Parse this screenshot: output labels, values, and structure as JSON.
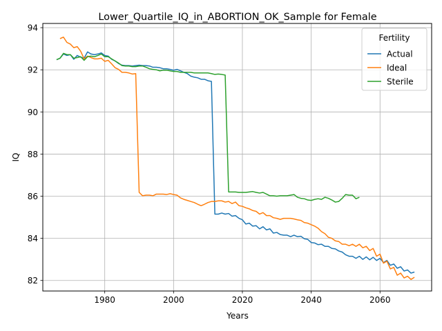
{
  "chart_data": {
    "type": "line",
    "title": "Lower_Quartile_IQ_in_ABORTION_OK_Sample for Female",
    "xlabel": "Years",
    "ylabel": "IQ",
    "xlim": [
      1962,
      2075
    ],
    "ylim": [
      81.5,
      94.2
    ],
    "xticks": [
      1980,
      2000,
      2020,
      2040,
      2060
    ],
    "yticks": [
      82,
      84,
      86,
      88,
      90,
      92,
      94
    ],
    "grid": true,
    "legend": {
      "title": "Fertility",
      "placement": "top-right"
    },
    "series": [
      {
        "name": "Actual",
        "color": "#1f77b4",
        "points": [
          [
            1966,
            92.48
          ],
          [
            1967,
            92.55
          ],
          [
            1968,
            92.75
          ],
          [
            1969,
            92.68
          ],
          [
            1970,
            92.72
          ],
          [
            1971,
            92.5
          ],
          [
            1972,
            92.68
          ],
          [
            1973,
            92.6
          ],
          [
            1974,
            92.55
          ],
          [
            1975,
            92.85
          ],
          [
            1976,
            92.75
          ],
          [
            1977,
            92.72
          ],
          [
            1978,
            92.75
          ],
          [
            1979,
            92.8
          ],
          [
            1980,
            92.68
          ],
          [
            1981,
            92.65
          ],
          [
            1982,
            92.5
          ],
          [
            1983,
            92.42
          ],
          [
            1984,
            92.3
          ],
          [
            1985,
            92.22
          ],
          [
            1986,
            92.2
          ],
          [
            1987,
            92.2
          ],
          [
            1988,
            92.18
          ],
          [
            1989,
            92.2
          ],
          [
            1990,
            92.22
          ],
          [
            1991,
            92.2
          ],
          [
            1992,
            92.2
          ],
          [
            1993,
            92.18
          ],
          [
            1994,
            92.12
          ],
          [
            1995,
            92.12
          ],
          [
            1996,
            92.1
          ],
          [
            1997,
            92.05
          ],
          [
            1998,
            92.05
          ],
          [
            1999,
            92.02
          ],
          [
            2000,
            91.98
          ],
          [
            2001,
            92.02
          ],
          [
            2002,
            91.95
          ],
          [
            2003,
            91.88
          ],
          [
            2004,
            91.82
          ],
          [
            2005,
            91.7
          ],
          [
            2006,
            91.65
          ],
          [
            2007,
            91.62
          ],
          [
            2008,
            91.55
          ],
          [
            2009,
            91.55
          ],
          [
            2010,
            91.48
          ],
          [
            2011,
            91.45
          ],
          [
            2012,
            85.15
          ],
          [
            2013,
            85.15
          ],
          [
            2014,
            85.2
          ],
          [
            2015,
            85.15
          ],
          [
            2016,
            85.18
          ],
          [
            2017,
            85.05
          ],
          [
            2018,
            85.08
          ],
          [
            2019,
            84.95
          ],
          [
            2020,
            84.88
          ],
          [
            2021,
            84.68
          ],
          [
            2022,
            84.72
          ],
          [
            2023,
            84.58
          ],
          [
            2024,
            84.6
          ],
          [
            2025,
            84.45
          ],
          [
            2026,
            84.55
          ],
          [
            2027,
            84.4
          ],
          [
            2028,
            84.45
          ],
          [
            2029,
            84.25
          ],
          [
            2030,
            84.28
          ],
          [
            2031,
            84.18
          ],
          [
            2032,
            84.15
          ],
          [
            2033,
            84.15
          ],
          [
            2034,
            84.08
          ],
          [
            2035,
            84.15
          ],
          [
            2036,
            84.08
          ],
          [
            2037,
            84.1
          ],
          [
            2038,
            83.98
          ],
          [
            2039,
            83.95
          ],
          [
            2040,
            83.8
          ],
          [
            2041,
            83.78
          ],
          [
            2042,
            83.7
          ],
          [
            2043,
            83.72
          ],
          [
            2044,
            83.62
          ],
          [
            2045,
            83.62
          ],
          [
            2046,
            83.52
          ],
          [
            2047,
            83.5
          ],
          [
            2048,
            83.4
          ],
          [
            2049,
            83.35
          ],
          [
            2050,
            83.22
          ],
          [
            2051,
            83.15
          ],
          [
            2052,
            83.15
          ],
          [
            2053,
            83.05
          ],
          [
            2054,
            83.15
          ],
          [
            2055,
            83.0
          ],
          [
            2056,
            83.12
          ],
          [
            2057,
            82.98
          ],
          [
            2058,
            83.1
          ],
          [
            2059,
            82.95
          ],
          [
            2060,
            83.05
          ],
          [
            2061,
            82.85
          ],
          [
            2062,
            82.95
          ],
          [
            2063,
            82.72
          ],
          [
            2064,
            82.78
          ],
          [
            2065,
            82.58
          ],
          [
            2066,
            82.65
          ],
          [
            2067,
            82.45
          ],
          [
            2068,
            82.5
          ],
          [
            2069,
            82.35
          ],
          [
            2070,
            82.4
          ]
        ]
      },
      {
        "name": "Ideal",
        "color": "#ff7f0e",
        "points": [
          [
            1967,
            93.48
          ],
          [
            1968,
            93.55
          ],
          [
            1969,
            93.3
          ],
          [
            1970,
            93.22
          ],
          [
            1971,
            93.05
          ],
          [
            1972,
            93.1
          ],
          [
            1973,
            92.88
          ],
          [
            1974,
            92.52
          ],
          [
            1975,
            92.65
          ],
          [
            1976,
            92.58
          ],
          [
            1977,
            92.52
          ],
          [
            1978,
            92.52
          ],
          [
            1979,
            92.55
          ],
          [
            1980,
            92.4
          ],
          [
            1981,
            92.45
          ],
          [
            1982,
            92.28
          ],
          [
            1983,
            92.1
          ],
          [
            1984,
            92.02
          ],
          [
            1985,
            91.88
          ],
          [
            1986,
            91.88
          ],
          [
            1987,
            91.85
          ],
          [
            1988,
            91.8
          ],
          [
            1989,
            91.82
          ],
          [
            1990,
            86.18
          ],
          [
            1991,
            86.02
          ],
          [
            1992,
            86.05
          ],
          [
            1993,
            86.05
          ],
          [
            1994,
            86.02
          ],
          [
            1995,
            86.1
          ],
          [
            1996,
            86.1
          ],
          [
            1997,
            86.1
          ],
          [
            1998,
            86.08
          ],
          [
            1999,
            86.12
          ],
          [
            2000,
            86.08
          ],
          [
            2001,
            86.05
          ],
          [
            2002,
            85.92
          ],
          [
            2003,
            85.85
          ],
          [
            2004,
            85.8
          ],
          [
            2005,
            85.75
          ],
          [
            2006,
            85.7
          ],
          [
            2007,
            85.62
          ],
          [
            2008,
            85.55
          ],
          [
            2009,
            85.62
          ],
          [
            2010,
            85.7
          ],
          [
            2011,
            85.75
          ],
          [
            2012,
            85.75
          ],
          [
            2013,
            85.78
          ],
          [
            2014,
            85.78
          ],
          [
            2015,
            85.72
          ],
          [
            2016,
            85.75
          ],
          [
            2017,
            85.65
          ],
          [
            2018,
            85.72
          ],
          [
            2019,
            85.55
          ],
          [
            2020,
            85.52
          ],
          [
            2021,
            85.45
          ],
          [
            2022,
            85.4
          ],
          [
            2023,
            85.32
          ],
          [
            2024,
            85.28
          ],
          [
            2025,
            85.15
          ],
          [
            2026,
            85.22
          ],
          [
            2027,
            85.08
          ],
          [
            2028,
            85.08
          ],
          [
            2029,
            84.98
          ],
          [
            2030,
            84.95
          ],
          [
            2031,
            84.9
          ],
          [
            2032,
            84.95
          ],
          [
            2033,
            84.95
          ],
          [
            2034,
            84.95
          ],
          [
            2035,
            84.92
          ],
          [
            2036,
            84.88
          ],
          [
            2037,
            84.85
          ],
          [
            2038,
            84.75
          ],
          [
            2039,
            84.72
          ],
          [
            2040,
            84.65
          ],
          [
            2041,
            84.58
          ],
          [
            2042,
            84.48
          ],
          [
            2043,
            84.32
          ],
          [
            2044,
            84.22
          ],
          [
            2045,
            84.05
          ],
          [
            2046,
            84.0
          ],
          [
            2047,
            83.88
          ],
          [
            2048,
            83.85
          ],
          [
            2049,
            83.72
          ],
          [
            2050,
            83.72
          ],
          [
            2051,
            83.65
          ],
          [
            2052,
            83.72
          ],
          [
            2053,
            83.62
          ],
          [
            2054,
            83.72
          ],
          [
            2055,
            83.55
          ],
          [
            2056,
            83.62
          ],
          [
            2057,
            83.42
          ],
          [
            2058,
            83.52
          ],
          [
            2059,
            83.15
          ],
          [
            2060,
            83.25
          ],
          [
            2061,
            82.82
          ],
          [
            2062,
            82.92
          ],
          [
            2063,
            82.55
          ],
          [
            2064,
            82.62
          ],
          [
            2065,
            82.25
          ],
          [
            2066,
            82.35
          ],
          [
            2067,
            82.12
          ],
          [
            2068,
            82.2
          ],
          [
            2069,
            82.05
          ],
          [
            2070,
            82.15
          ]
        ]
      },
      {
        "name": "Sterile",
        "color": "#2ca02c",
        "points": [
          [
            1966,
            92.48
          ],
          [
            1967,
            92.55
          ],
          [
            1968,
            92.78
          ],
          [
            1969,
            92.72
          ],
          [
            1970,
            92.72
          ],
          [
            1971,
            92.55
          ],
          [
            1972,
            92.58
          ],
          [
            1973,
            92.62
          ],
          [
            1974,
            92.45
          ],
          [
            1975,
            92.62
          ],
          [
            1976,
            92.65
          ],
          [
            1977,
            92.62
          ],
          [
            1978,
            92.68
          ],
          [
            1979,
            92.75
          ],
          [
            1980,
            92.62
          ],
          [
            1981,
            92.62
          ],
          [
            1982,
            92.52
          ],
          [
            1983,
            92.42
          ],
          [
            1984,
            92.32
          ],
          [
            1985,
            92.2
          ],
          [
            1986,
            92.18
          ],
          [
            1987,
            92.18
          ],
          [
            1988,
            92.15
          ],
          [
            1989,
            92.15
          ],
          [
            1990,
            92.18
          ],
          [
            1991,
            92.18
          ],
          [
            1992,
            92.12
          ],
          [
            1993,
            92.05
          ],
          [
            1994,
            92.02
          ],
          [
            1995,
            92.0
          ],
          [
            1996,
            91.95
          ],
          [
            1997,
            91.98
          ],
          [
            1998,
            91.98
          ],
          [
            1999,
            91.95
          ],
          [
            2000,
            91.92
          ],
          [
            2001,
            91.92
          ],
          [
            2002,
            91.88
          ],
          [
            2003,
            91.88
          ],
          [
            2004,
            91.88
          ],
          [
            2005,
            91.88
          ],
          [
            2006,
            91.85
          ],
          [
            2007,
            91.85
          ],
          [
            2008,
            91.85
          ],
          [
            2009,
            91.85
          ],
          [
            2010,
            91.85
          ],
          [
            2011,
            91.82
          ],
          [
            2012,
            91.78
          ],
          [
            2013,
            91.8
          ],
          [
            2014,
            91.78
          ],
          [
            2015,
            91.75
          ],
          [
            2016,
            86.2
          ],
          [
            2017,
            86.2
          ],
          [
            2018,
            86.2
          ],
          [
            2019,
            86.18
          ],
          [
            2020,
            86.18
          ],
          [
            2021,
            86.18
          ],
          [
            2022,
            86.2
          ],
          [
            2023,
            86.22
          ],
          [
            2024,
            86.18
          ],
          [
            2025,
            86.15
          ],
          [
            2026,
            86.18
          ],
          [
            2027,
            86.1
          ],
          [
            2028,
            86.02
          ],
          [
            2029,
            86.02
          ],
          [
            2030,
            86.0
          ],
          [
            2031,
            86.02
          ],
          [
            2032,
            86.02
          ],
          [
            2033,
            86.02
          ],
          [
            2034,
            86.05
          ],
          [
            2035,
            86.08
          ],
          [
            2036,
            85.95
          ],
          [
            2037,
            85.9
          ],
          [
            2038,
            85.88
          ],
          [
            2039,
            85.82
          ],
          [
            2040,
            85.8
          ],
          [
            2041,
            85.85
          ],
          [
            2042,
            85.88
          ],
          [
            2043,
            85.85
          ],
          [
            2044,
            85.95
          ],
          [
            2045,
            85.9
          ],
          [
            2046,
            85.82
          ],
          [
            2047,
            85.72
          ],
          [
            2048,
            85.75
          ],
          [
            2049,
            85.9
          ],
          [
            2050,
            86.08
          ],
          [
            2051,
            86.05
          ],
          [
            2052,
            86.05
          ],
          [
            2053,
            85.88
          ],
          [
            2054,
            85.95
          ]
        ]
      }
    ]
  }
}
